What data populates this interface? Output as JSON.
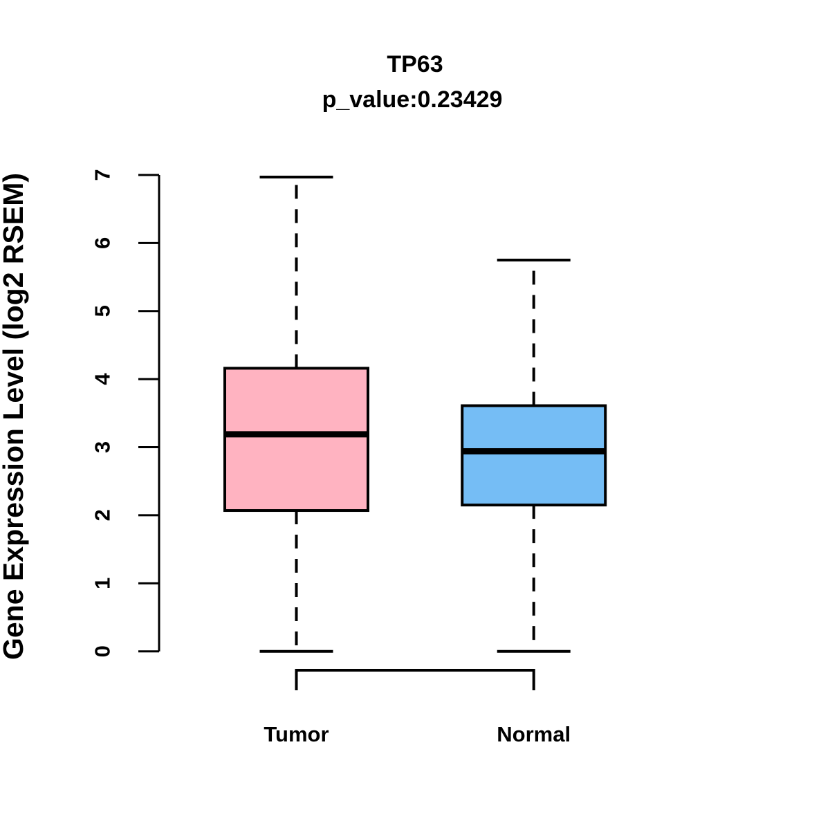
{
  "title": "TP63",
  "subtitle": "p_value:0.23429",
  "p_value": "0.23429",
  "gene": "TP63",
  "chart_data": {
    "type": "boxplot",
    "title": "TP63",
    "subtitle": "p_value:0.23429",
    "xlabel": "",
    "ylabel": "Gene Expression Level (log2 RSEM)",
    "ylim": [
      0,
      7
    ],
    "yticks": [
      0,
      1,
      2,
      3,
      4,
      5,
      6,
      7
    ],
    "ytick_labels": [
      "0",
      "1",
      "2",
      "3",
      "4",
      "5",
      "6",
      "7"
    ],
    "categories": [
      "Tumor",
      "Normal"
    ],
    "series": [
      {
        "name": "Tumor",
        "min": 0,
        "q1": 2.07,
        "median": 3.19,
        "q3": 4.16,
        "max": 6.97,
        "fill": "#FFB3C1"
      },
      {
        "name": "Normal",
        "min": 0,
        "q1": 2.15,
        "median": 2.94,
        "q3": 3.61,
        "max": 5.75,
        "fill": "#75BDF5"
      }
    ],
    "whisker_line_style": "dashed",
    "box_border_color": "#000000",
    "median_color": "#000000",
    "axis_color": "#000000",
    "background": "#FFFFFF",
    "grid": false,
    "legend": "none"
  }
}
